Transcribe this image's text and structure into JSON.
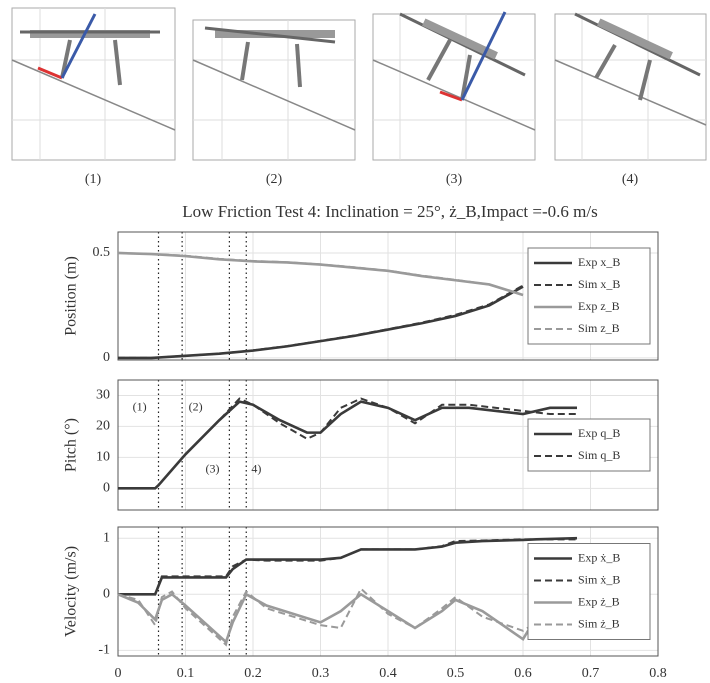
{
  "snapshots": {
    "labels": [
      "(1)",
      "(2)",
      "(3)",
      "(4)"
    ]
  },
  "title": "Low Friction Test 4: Inclination = 25°, ż_B,Impact =-0.6 m/s",
  "chart_data": [
    {
      "type": "line",
      "y_label": "Position (m)",
      "xlim": [
        0,
        0.8
      ],
      "xticks": [
        0,
        0.1,
        0.2,
        0.3,
        0.4,
        0.5,
        0.6,
        0.7,
        0.8
      ],
      "xtick_labels": false,
      "ylim": [
        -0.01,
        0.6
      ],
      "yticks": [
        0,
        0.5
      ],
      "grid": true,
      "legend": "right",
      "vlines": [
        0.06,
        0.095,
        0.165,
        0.19
      ],
      "x": [
        0,
        0.05,
        0.1,
        0.15,
        0.2,
        0.25,
        0.3,
        0.35,
        0.4,
        0.45,
        0.5,
        0.55,
        0.6
      ],
      "series": [
        {
          "name": "Exp x_B",
          "color": "#3a3a3a",
          "dashed": false,
          "values": [
            0,
            0,
            0.01,
            0.02,
            0.035,
            0.055,
            0.08,
            0.105,
            0.135,
            0.165,
            0.2,
            0.25,
            0.34
          ]
        },
        {
          "name": "Sim x_B",
          "color": "#3a3a3a",
          "dashed": true,
          "values": [
            0,
            0,
            0.01,
            0.02,
            0.036,
            0.056,
            0.081,
            0.107,
            0.137,
            0.168,
            0.205,
            0.255,
            0.345
          ]
        },
        {
          "name": "Exp z_B",
          "color": "#9a9a9a",
          "dashed": false,
          "values": [
            0.5,
            0.495,
            0.485,
            0.47,
            0.46,
            0.455,
            0.445,
            0.43,
            0.415,
            0.39,
            0.37,
            0.35,
            0.3
          ]
        },
        {
          "name": "Sim z_B",
          "color": "#9a9a9a",
          "dashed": true,
          "values": [
            0.5,
            0.495,
            0.487,
            0.472,
            0.462,
            0.456,
            0.446,
            0.432,
            0.416,
            0.392,
            0.372,
            0.35,
            0.3
          ]
        }
      ]
    },
    {
      "type": "line",
      "y_label": "Pitch (°)",
      "xlim": [
        0,
        0.8
      ],
      "xticks": [
        0,
        0.1,
        0.2,
        0.3,
        0.4,
        0.5,
        0.6,
        0.7,
        0.8
      ],
      "xtick_labels": false,
      "ylim": [
        -7,
        35
      ],
      "yticks": [
        0,
        10,
        20,
        30
      ],
      "grid": true,
      "legend": "right",
      "vlines": [
        0.06,
        0.095,
        0.165,
        0.19
      ],
      "annotations": [
        {
          "text": "(1)",
          "x": 0.032,
          "y": 26
        },
        {
          "text": "(2)",
          "x": 0.115,
          "y": 26
        },
        {
          "text": "(3)",
          "x": 0.14,
          "y": 6
        },
        {
          "text": "4)",
          "x": 0.205,
          "y": 6
        }
      ],
      "x": [
        0,
        0.055,
        0.06,
        0.1,
        0.15,
        0.18,
        0.2,
        0.24,
        0.28,
        0.3,
        0.33,
        0.36,
        0.4,
        0.44,
        0.48,
        0.52,
        0.56,
        0.6,
        0.64,
        0.68
      ],
      "series": [
        {
          "name": "Exp q_B",
          "color": "#3a3a3a",
          "dashed": false,
          "values": [
            0,
            0,
            1,
            11,
            22,
            28,
            27,
            22,
            18,
            18,
            24,
            28,
            26,
            22,
            26,
            26,
            25,
            24,
            26,
            26
          ]
        },
        {
          "name": "Sim q_B",
          "color": "#3a3a3a",
          "dashed": true,
          "values": [
            0,
            0,
            1,
            11,
            22,
            29,
            27,
            21,
            16,
            18,
            26,
            29,
            26,
            21,
            27,
            27,
            26,
            25,
            24,
            24
          ]
        }
      ]
    },
    {
      "type": "line",
      "y_label": "Velocity (m/s)",
      "xlim": [
        0,
        0.8
      ],
      "xticks": [
        0,
        0.1,
        0.2,
        0.3,
        0.4,
        0.5,
        0.6,
        0.7,
        0.8
      ],
      "xtick_labels": true,
      "ylim": [
        -1.1,
        1.2
      ],
      "yticks": [
        -1,
        0,
        1
      ],
      "grid": true,
      "legend": "right",
      "vlines": [
        0.06,
        0.095,
        0.165,
        0.19
      ],
      "x": [
        0,
        0.03,
        0.055,
        0.065,
        0.08,
        0.1,
        0.16,
        0.17,
        0.19,
        0.22,
        0.3,
        0.33,
        0.36,
        0.4,
        0.44,
        0.48,
        0.5,
        0.54,
        0.6,
        0.62,
        0.68
      ],
      "series": [
        {
          "name": "Exp ẋ_B",
          "color": "#3a3a3a",
          "dashed": false,
          "values": [
            0,
            0,
            0,
            0.3,
            0.3,
            0.3,
            0.3,
            0.45,
            0.62,
            0.62,
            0.62,
            0.65,
            0.8,
            0.8,
            0.8,
            0.85,
            0.92,
            0.95,
            0.97,
            0.98,
            1.0
          ]
        },
        {
          "name": "Sim ẋ_B",
          "color": "#3a3a3a",
          "dashed": true,
          "values": [
            0,
            0,
            0,
            0.32,
            0.32,
            0.32,
            0.32,
            0.5,
            0.62,
            0.6,
            0.6,
            0.65,
            0.8,
            0.8,
            0.8,
            0.86,
            0.95,
            0.96,
            0.98,
            0.98,
            0.98
          ]
        },
        {
          "name": "Exp ż_B",
          "color": "#9a9a9a",
          "dashed": false,
          "values": [
            0,
            -0.15,
            -0.45,
            -0.1,
            0,
            -0.2,
            -0.85,
            -0.5,
            0,
            -0.2,
            -0.5,
            -0.3,
            0,
            -0.3,
            -0.6,
            -0.3,
            -0.1,
            -0.3,
            -0.8,
            -0.4,
            -0.5
          ]
        },
        {
          "name": "Sim ż_B",
          "color": "#9a9a9a",
          "dashed": true,
          "values": [
            0,
            -0.1,
            -0.55,
            -0.05,
            0.05,
            -0.25,
            -0.9,
            -0.4,
            0.05,
            -0.25,
            -0.55,
            -0.6,
            0.1,
            -0.35,
            -0.6,
            -0.25,
            -0.05,
            -0.4,
            -0.65,
            -0.5,
            -0.6
          ]
        }
      ]
    }
  ]
}
